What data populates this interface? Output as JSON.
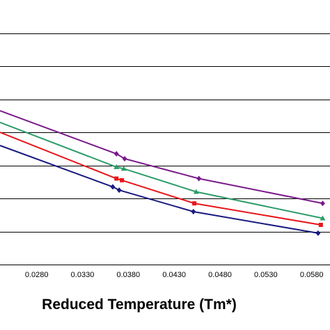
{
  "chart_data": {
    "type": "line",
    "xlabel": "Reduced Temperature (Tm*)",
    "xlim": [
      0.024,
      0.06
    ],
    "ylim": [
      0,
      8
    ],
    "x_ticks": [
      "0.0280",
      "0.0330",
      "0.0380",
      "0.0430",
      "0.0480",
      "0.0530",
      "0.0580"
    ],
    "x_tick_values": [
      0.028,
      0.033,
      0.038,
      0.043,
      0.048,
      0.053,
      0.058
    ],
    "y_gridlines": [
      1,
      2,
      3,
      4,
      5,
      6,
      7
    ],
    "grid": true,
    "legend": "none",
    "series": [
      {
        "color": "#1a1a80",
        "marker": "diamond",
        "points": [
          [
            0.024,
            3.6
          ],
          [
            0.0363,
            2.35
          ],
          [
            0.037,
            2.25
          ],
          [
            0.0451,
            1.6
          ],
          [
            0.0587,
            0.95
          ]
        ]
      },
      {
        "color": "#e8161b",
        "marker": "square",
        "points": [
          [
            0.024,
            4.0
          ],
          [
            0.0367,
            2.6
          ],
          [
            0.0373,
            2.55
          ],
          [
            0.0452,
            1.85
          ],
          [
            0.059,
            1.2
          ]
        ]
      },
      {
        "color": "#2e9c6a",
        "marker": "triangle",
        "points": [
          [
            0.024,
            4.3
          ],
          [
            0.0367,
            2.95
          ],
          [
            0.0375,
            2.9
          ],
          [
            0.0454,
            2.2
          ],
          [
            0.0592,
            1.4
          ]
        ]
      },
      {
        "color": "#7a1a8a",
        "marker": "diamond",
        "points": [
          [
            0.024,
            4.65
          ],
          [
            0.0367,
            3.35
          ],
          [
            0.0376,
            3.2
          ],
          [
            0.0457,
            2.6
          ],
          [
            0.0592,
            1.85
          ]
        ]
      }
    ]
  }
}
